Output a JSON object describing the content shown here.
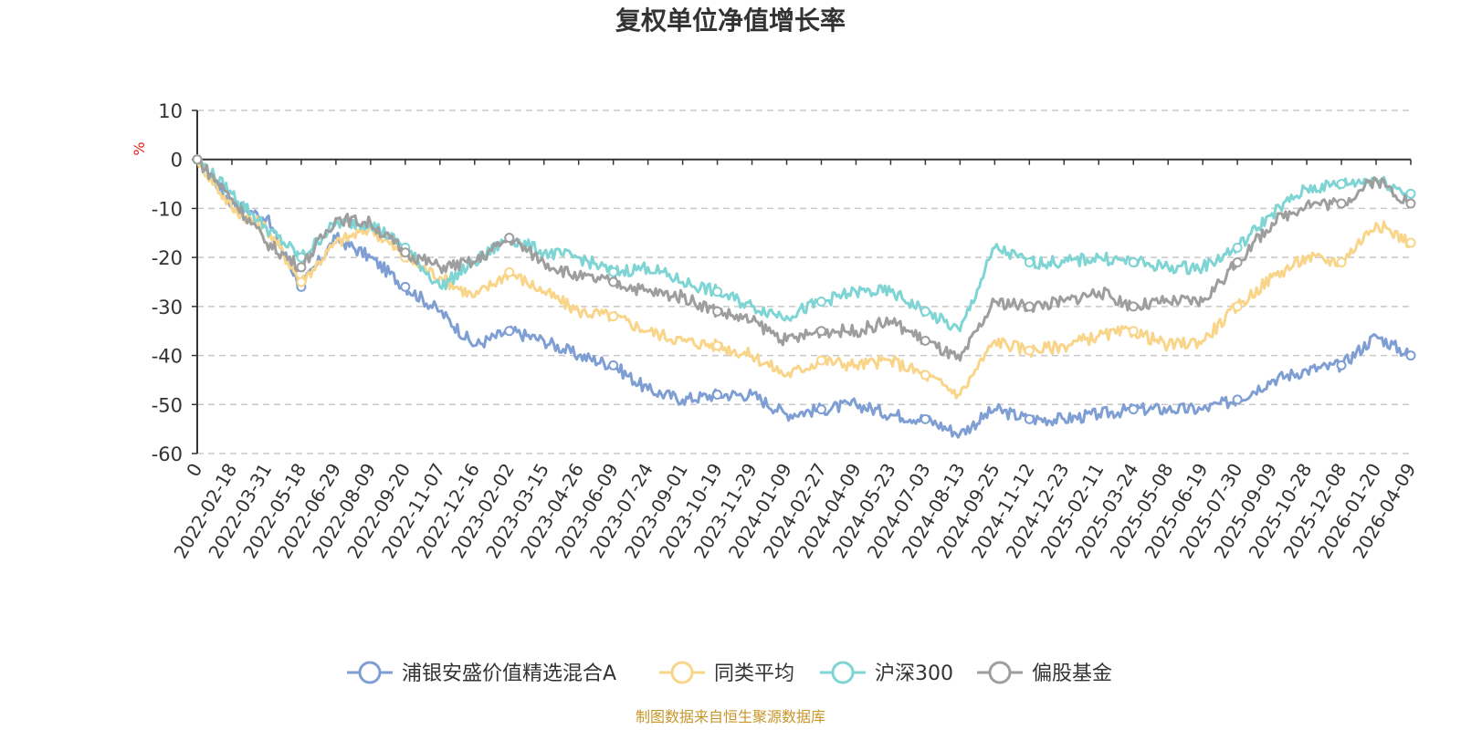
{
  "chart_data": {
    "type": "line",
    "title": "复权单位净值增长率",
    "ylabel": "%",
    "xlabel": "",
    "ylim": [
      -60,
      10
    ],
    "yticks": [
      10,
      0,
      -10,
      -20,
      -30,
      -40,
      -50,
      -60
    ],
    "grid": true,
    "legend_position": "bottom",
    "source": "制图数据来自恒生聚源数据库",
    "categories": [
      "0",
      "2022-02-18",
      "2022-03-31",
      "2022-05-18",
      "2022-06-29",
      "2022-08-09",
      "2022-09-20",
      "2022-11-07",
      "2022-12-16",
      "2023-02-02",
      "2023-03-15",
      "2023-04-26",
      "2023-06-09",
      "2023-07-24",
      "2023-09-01",
      "2023-10-19",
      "2023-11-29",
      "2024-01-09",
      "2024-02-27",
      "2024-04-09",
      "2024-05-23",
      "2024-07-03",
      "2024-08-13",
      "2024-09-25",
      "2024-11-12",
      "2024-12-23",
      "2025-02-11",
      "2025-03-24",
      "2025-05-08",
      "2025-06-19",
      "2025-07-30",
      "2025-09-09",
      "2025-10-28",
      "2025-12-08",
      "2026-01-20",
      "2026-04-09"
    ],
    "series": [
      {
        "name": "浦银安盛价值精选混合A",
        "color": "#7f9fd4",
        "values": [
          0,
          -9,
          -12,
          -26,
          -16,
          -20,
          -26,
          -31,
          -38,
          -35,
          -37,
          -40,
          -42,
          -47,
          -49,
          -48,
          -48,
          -52,
          -51,
          -50,
          -52,
          -53,
          -56,
          -51,
          -53,
          -53,
          -52,
          -51,
          -51,
          -51,
          -49,
          -45,
          -43,
          -42,
          -36,
          -40
        ]
      },
      {
        "name": "同类平均",
        "color": "#f9d58a",
        "values": [
          0,
          -10,
          -14,
          -25,
          -17,
          -14,
          -20,
          -24,
          -28,
          -23,
          -27,
          -31,
          -32,
          -35,
          -37,
          -38,
          -40,
          -44,
          -41,
          -42,
          -41,
          -44,
          -48,
          -37,
          -39,
          -38,
          -36,
          -35,
          -38,
          -37,
          -30,
          -24,
          -20,
          -21,
          -13,
          -17
        ]
      },
      {
        "name": "沪深300",
        "color": "#7fd4d4",
        "values": [
          0,
          -7,
          -14,
          -20,
          -13,
          -13,
          -18,
          -26,
          -21,
          -16,
          -19,
          -20,
          -23,
          -22,
          -25,
          -27,
          -30,
          -32,
          -29,
          -27,
          -27,
          -31,
          -35,
          -18,
          -21,
          -21,
          -20,
          -21,
          -22,
          -22,
          -18,
          -11,
          -6,
          -5,
          -4,
          -7
        ]
      },
      {
        "name": "偏股基金",
        "color": "#9e9e9e",
        "values": [
          0,
          -8,
          -17,
          -22,
          -12,
          -13,
          -19,
          -22,
          -21,
          -16,
          -21,
          -24,
          -25,
          -27,
          -28,
          -31,
          -33,
          -37,
          -35,
          -35,
          -33,
          -37,
          -41,
          -29,
          -30,
          -29,
          -27,
          -30,
          -29,
          -29,
          -21,
          -13,
          -9,
          -9,
          -4,
          -9
        ]
      }
    ]
  }
}
